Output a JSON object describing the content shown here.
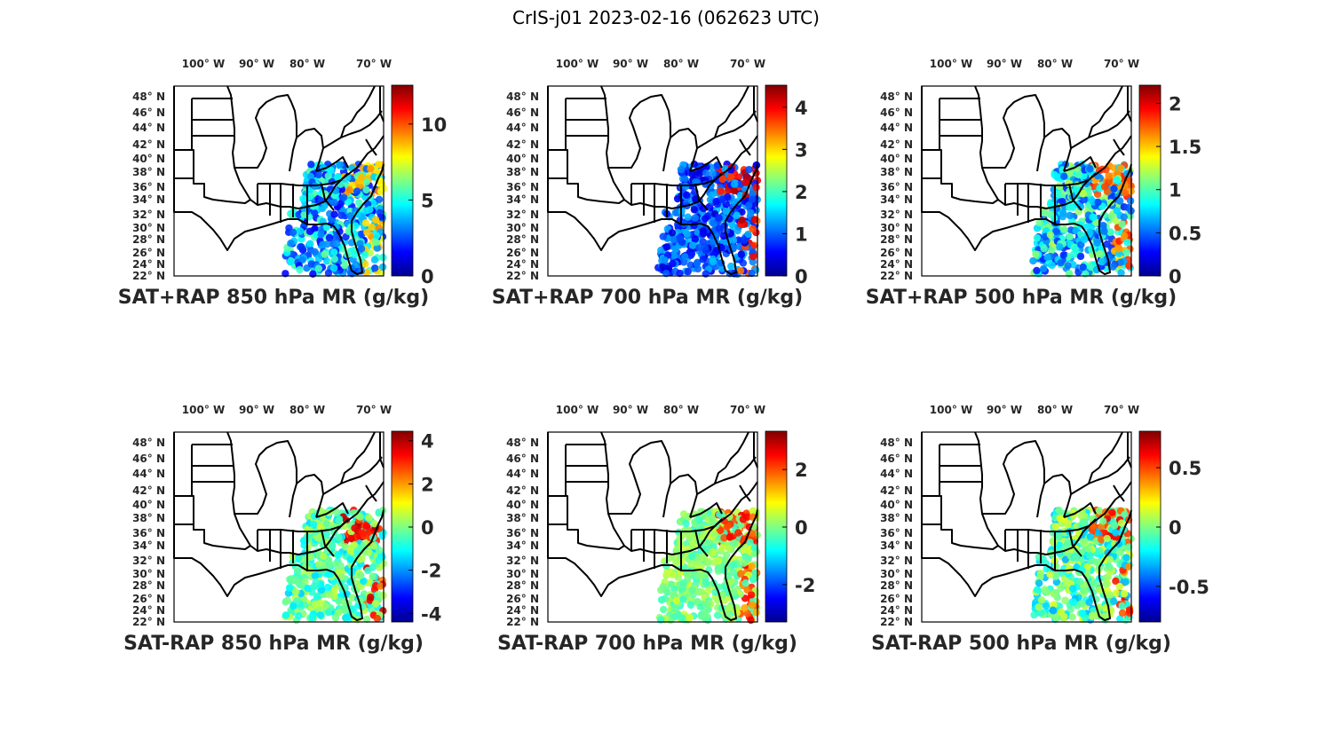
{
  "figure_title": "CrIS-j01 2023-02-16 (062623 UTC)",
  "lon_labels": [
    "100",
    "90",
    "80",
    "70"
  ],
  "lon_hemisphere": "W",
  "lat_labels": [
    "48",
    "46",
    "44",
    "42",
    "40",
    "38",
    "36",
    "34",
    "32",
    "30",
    "28",
    "26",
    "24",
    "22"
  ],
  "lat_hemisphere": "N",
  "degree_symbol": "°",
  "colormap": "jet",
  "panels": [
    {
      "title": "SAT+RAP 850 hPa MR (g/kg)",
      "colorbar": {
        "min": 0,
        "max": 12.5,
        "ticks": [
          {
            "value": 0,
            "label": "0"
          },
          {
            "value": 5,
            "label": "5"
          },
          {
            "value": 10,
            "label": "10"
          }
        ]
      }
    },
    {
      "title": "SAT+RAP 700 hPa MR (g/kg)",
      "colorbar": {
        "min": 0,
        "max": 4.5,
        "ticks": [
          {
            "value": 0,
            "label": "0"
          },
          {
            "value": 1,
            "label": "1"
          },
          {
            "value": 2,
            "label": "2"
          },
          {
            "value": 3,
            "label": "3"
          },
          {
            "value": 4,
            "label": "4"
          }
        ]
      }
    },
    {
      "title": "SAT+RAP 500 hPa MR (g/kg)",
      "colorbar": {
        "min": 0,
        "max": 2.2,
        "ticks": [
          {
            "value": 0,
            "label": "0"
          },
          {
            "value": 0.5,
            "label": "0.5"
          },
          {
            "value": 1,
            "label": "1"
          },
          {
            "value": 1.5,
            "label": "1.5"
          },
          {
            "value": 2,
            "label": "2"
          }
        ]
      }
    },
    {
      "title": "SAT-RAP 850 hPa MR (g/kg)",
      "colorbar": {
        "min": -4.4,
        "max": 4.4,
        "ticks": [
          {
            "value": -4,
            "label": "-4"
          },
          {
            "value": -2,
            "label": "-2"
          },
          {
            "value": 0,
            "label": "0"
          },
          {
            "value": 2,
            "label": "2"
          },
          {
            "value": 4,
            "label": "4"
          }
        ]
      }
    },
    {
      "title": "SAT-RAP 700 hPa MR (g/kg)",
      "colorbar": {
        "min": -3.3,
        "max": 3.3,
        "ticks": [
          {
            "value": -2,
            "label": "-2"
          },
          {
            "value": 0,
            "label": "0"
          },
          {
            "value": 2,
            "label": "2"
          }
        ]
      }
    },
    {
      "title": "SAT-RAP 500 hPa MR (g/kg)",
      "colorbar": {
        "min": -0.8,
        "max": 0.8,
        "ticks": [
          {
            "value": -0.5,
            "label": "-0.5"
          },
          {
            "value": 0,
            "label": "0"
          },
          {
            "value": 0.5,
            "label": "0.5"
          }
        ]
      }
    }
  ]
}
